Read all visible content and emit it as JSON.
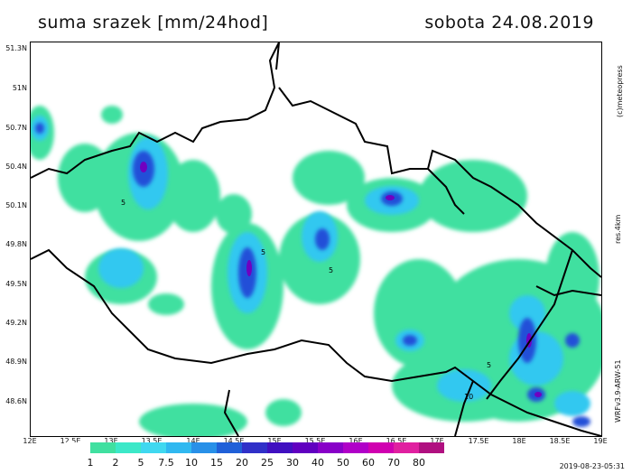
{
  "header": {
    "title": "suma srazek [mm/24hod]",
    "date": "sobota 24.08.2019"
  },
  "axes": {
    "lat_labels": [
      "51.3N",
      "51N",
      "50.7N",
      "50.4N",
      "50.1N",
      "49.8N",
      "49.5N",
      "49.2N",
      "48.9N",
      "48.6N"
    ],
    "lon_labels": [
      "12E",
      "12.5E",
      "13E",
      "13.5E",
      "14E",
      "14.5E",
      "15E",
      "15.5E",
      "16E",
      "16.5E",
      "17E",
      "17.5E",
      "18E",
      "18.5E",
      "19E"
    ]
  },
  "side_text": {
    "copyright": "(c)meteopress",
    "resolution": "res.4km",
    "model": "WRFv3.9-ARW-51"
  },
  "legend": {
    "labels": [
      "1",
      "2",
      "5",
      "7.5",
      "10",
      "15",
      "20",
      "25",
      "30",
      "40",
      "50",
      "60",
      "70",
      "80"
    ],
    "colors": [
      "#ffffff",
      "#40e0a0",
      "#3ce8c8",
      "#40d8f0",
      "#30b8f0",
      "#2890e8",
      "#2060d8",
      "#3030c8",
      "#4010c0",
      "#6000c0",
      "#8800c8",
      "#b000c8",
      "#d000b0",
      "#e020a0",
      "#b01080"
    ]
  },
  "contour_labels": [
    "5",
    "5",
    "5",
    "5",
    "10"
  ],
  "footer": {
    "timestamp": "2019-08-23-05:31"
  }
}
